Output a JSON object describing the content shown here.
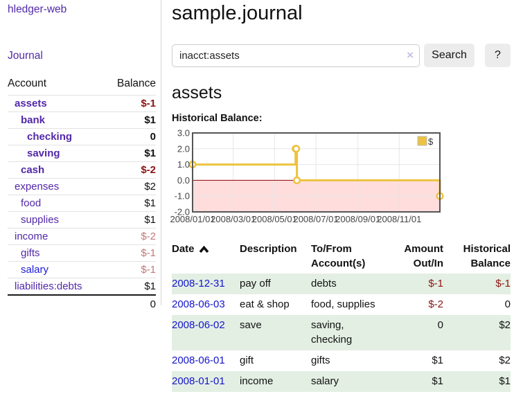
{
  "app": {
    "brand": "hledger-web",
    "nav_journal": "Journal"
  },
  "sidebar": {
    "header": {
      "account": "Account",
      "balance": "Balance"
    },
    "accounts": [
      {
        "name": "assets",
        "balance": "$-1"
      },
      {
        "name": "bank",
        "balance": "$1"
      },
      {
        "name": "checking",
        "balance": "0"
      },
      {
        "name": "saving",
        "balance": "$1"
      },
      {
        "name": "cash",
        "balance": "$-2"
      },
      {
        "name": "expenses",
        "balance": "$2"
      },
      {
        "name": "food",
        "balance": "$1"
      },
      {
        "name": "supplies",
        "balance": "$1"
      },
      {
        "name": "income",
        "balance": "$-2"
      },
      {
        "name": "gifts",
        "balance": "$-1"
      },
      {
        "name": "salary",
        "balance": "$-1"
      },
      {
        "name": "liabilities:debts",
        "balance": "$1"
      }
    ],
    "total": "0"
  },
  "main": {
    "title": "sample.journal",
    "search": {
      "value": "inacct:assets",
      "clear_icon": "×",
      "search_button": "Search",
      "help_button": "?"
    },
    "account_heading": "assets",
    "chart_title": "Historical Balance:"
  },
  "chart_data": {
    "type": "line",
    "line_style": "step-after",
    "title": "Historical Balance:",
    "series": [
      {
        "name": "$",
        "color": "#edc240",
        "points": [
          [
            "2008-01-01",
            1
          ],
          [
            "2008-06-01",
            2
          ],
          [
            "2008-06-02",
            2
          ],
          [
            "2008-06-03",
            0
          ],
          [
            "2008-12-31",
            -1
          ]
        ]
      }
    ],
    "x_range": [
      "2008-01-01",
      "2008-12-31"
    ],
    "ylim": [
      -2,
      3
    ],
    "x_ticks": [
      "2008/01/01",
      "2008/03/01",
      "2008/05/01",
      "2008/07/01",
      "2008/09/01",
      "2008/11/01"
    ],
    "y_ticks": [
      "3.0",
      "2.0",
      "1.0",
      "0.0",
      "-1.0",
      "-2.0"
    ],
    "grid": true,
    "legend_position": "top-right",
    "grid_color": "#e6e6e6",
    "frame_color": "#555555",
    "zero_line_color": "#990000",
    "negative_region_color": "#ffdddd",
    "legend_border_color": "#bbbbbb",
    "tick_label_color": "#444444"
  },
  "register": {
    "headers": [
      "Date",
      "Description",
      "To/From Account(s)",
      "Amount Out/In",
      "Historical Balance"
    ],
    "rows": [
      {
        "date": "2008-12-31",
        "description": "pay off",
        "accounts": "debts",
        "amount": "$-1",
        "balance": "$-1"
      },
      {
        "date": "2008-06-03",
        "description": "eat & shop",
        "accounts": "food, supplies",
        "amount": "$-2",
        "balance": "0"
      },
      {
        "date": "2008-06-02",
        "description": "save",
        "accounts": "saving, checking",
        "amount": "0",
        "balance": "$2"
      },
      {
        "date": "2008-06-01",
        "description": "gift",
        "accounts": "gifts",
        "amount": "$1",
        "balance": "$2"
      },
      {
        "date": "2008-01-01",
        "description": "income",
        "accounts": "salary",
        "amount": "$1",
        "balance": "$1"
      }
    ]
  },
  "colors": {
    "link_purple": "#5228a8",
    "link_blue": "#1414cc",
    "negative_strong": "#8b1212",
    "negative_soft": "#c27878",
    "row_highlight_green": "#e3efe3",
    "chart_series_gold": "#edc240",
    "chart_negative_region_pink": "#ffdddd",
    "chart_zero_line_red": "#990000"
  }
}
